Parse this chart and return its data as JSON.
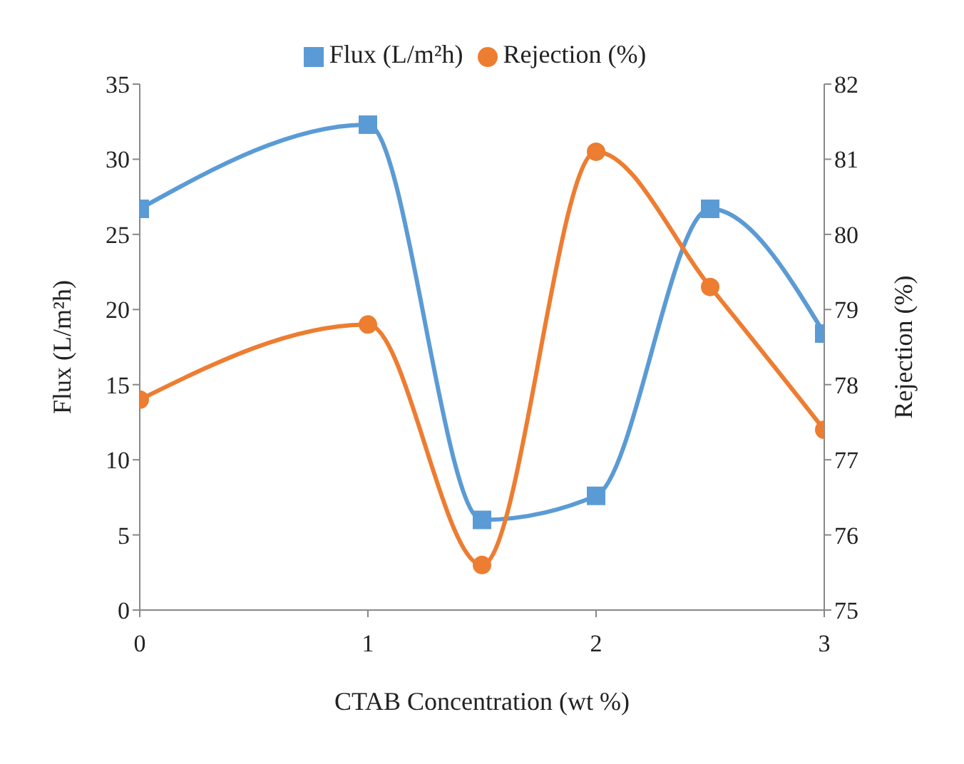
{
  "chart_data": {
    "type": "line",
    "xlabel": "CTAB Concentration (wt %)",
    "ylabel": "Flux (L/m²h)",
    "y2label": "Rejection (%)",
    "x": [
      0,
      1,
      1.5,
      2,
      2.5,
      3
    ],
    "series": [
      {
        "name": "Flux (L/m²h)",
        "color": "#5b9bd5",
        "marker": "square",
        "values": [
          26.7,
          32.3,
          6.0,
          7.6,
          26.7,
          18.4
        ]
      },
      {
        "name": "Rejection (%)",
        "color": "#ed7d31",
        "marker": "circle",
        "axis": "y2",
        "values": [
          77.8,
          78.8,
          75.6,
          81.1,
          79.3,
          77.4
        ]
      }
    ],
    "xlim": [
      0,
      3
    ],
    "xticks": [
      0,
      1,
      2,
      3
    ],
    "ylim": [
      0,
      35
    ],
    "yticks": [
      0,
      5,
      10,
      15,
      20,
      25,
      30,
      35
    ],
    "y2lim": [
      75,
      82
    ],
    "y2ticks": [
      75,
      76,
      77,
      78,
      79,
      80,
      81,
      82
    ],
    "legend": "top",
    "grid": false
  }
}
